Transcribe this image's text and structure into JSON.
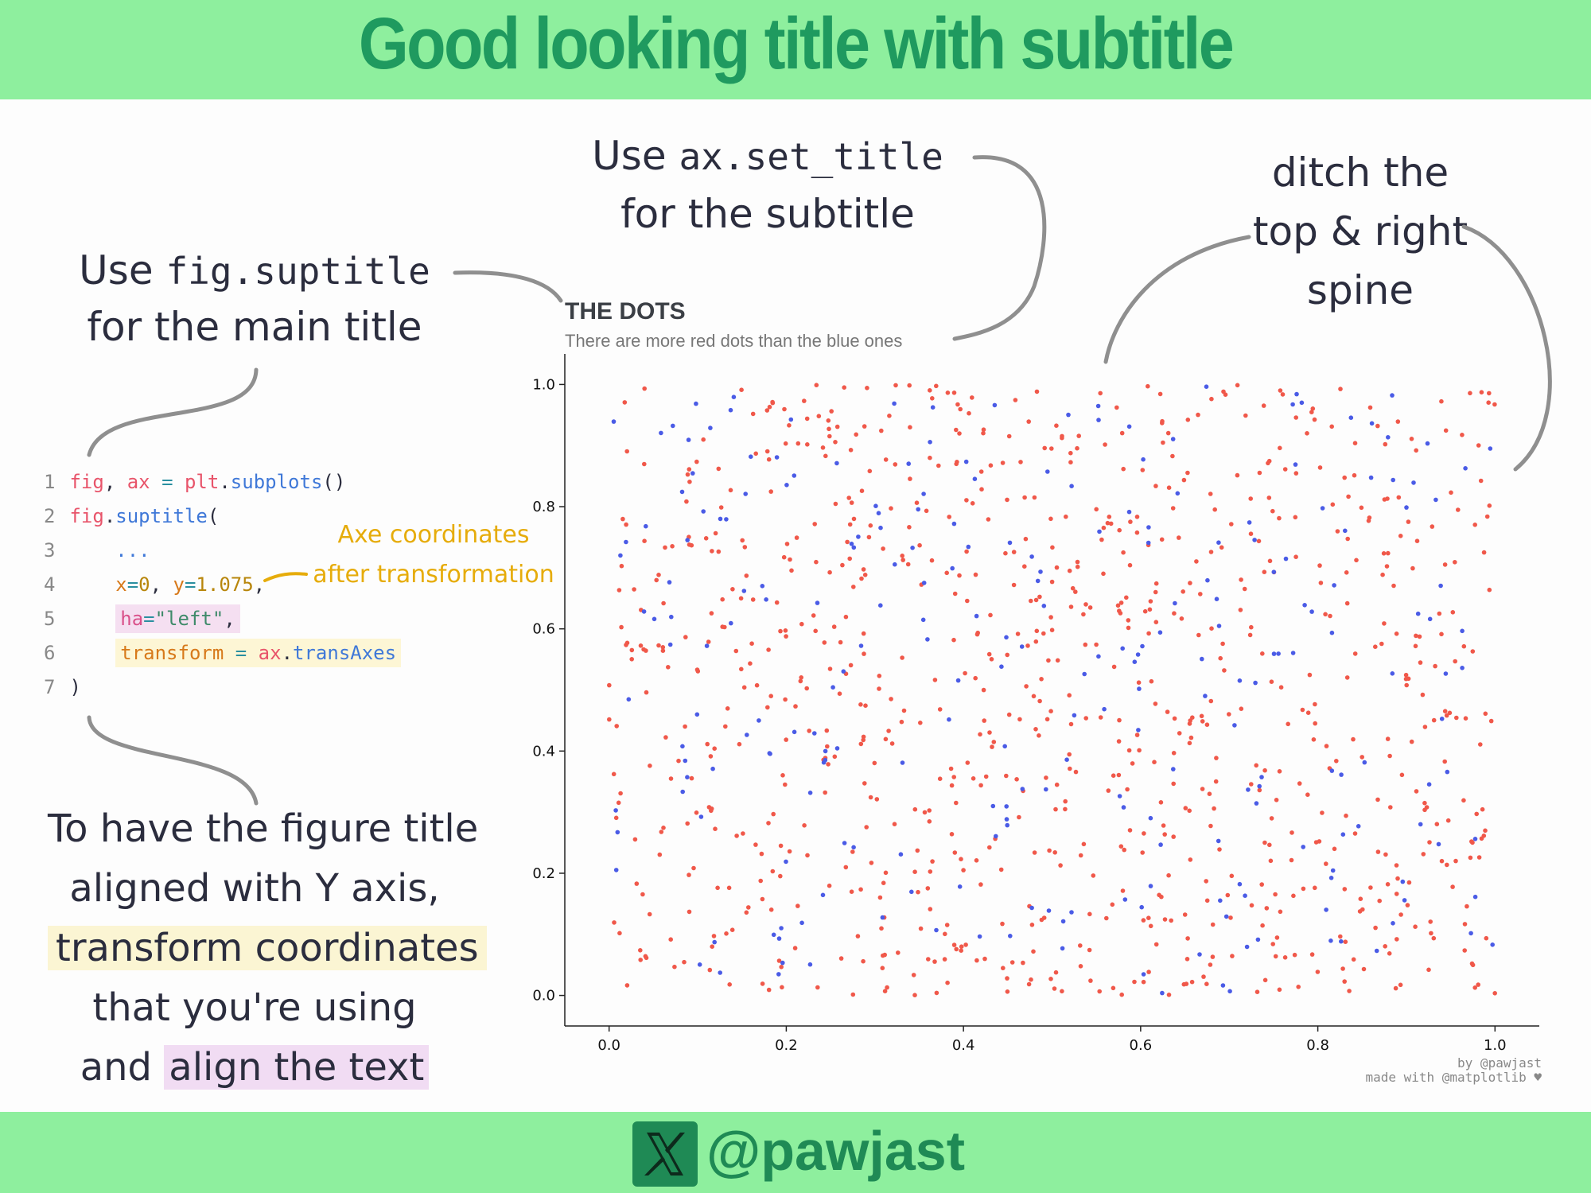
{
  "header": {
    "title": "Good looking title with subtitle"
  },
  "footer": {
    "handle": "@pawjast"
  },
  "notes": {
    "suptitle_a": "Use ",
    "suptitle_code": "fig.suptitle",
    "suptitle_b": "for the main title",
    "settitle_a": "Use ",
    "settitle_code": "ax.set_title",
    "settitle_b": "for the subtitle",
    "spine_1": "ditch the",
    "spine_2": "top & right",
    "spine_3": "spine",
    "align_1": "To have the figure title",
    "align_2": "aligned with Y axis,",
    "align_3": "transform coordinates",
    "align_4": "that you're using",
    "align_5a": "and ",
    "align_5b": "align the text",
    "axe_1": "Axe coordinates",
    "axe_2": "after transformation"
  },
  "code": {
    "l1": [
      "1",
      "fig",
      ", ",
      "ax",
      " = ",
      "plt",
      ".",
      "subplots",
      "()"
    ],
    "l2": [
      "2",
      "fig",
      ".",
      "suptitle",
      "("
    ],
    "l3": [
      "3",
      "    ..."
    ],
    "l4": [
      "4",
      "    ",
      "x",
      "=",
      "0",
      ", ",
      "y",
      "=",
      "1.075",
      ","
    ],
    "l5": [
      "5",
      "    ",
      "ha",
      "=",
      "\"left\"",
      ","
    ],
    "l6": [
      "6",
      "    ",
      "transform",
      " = ",
      "ax",
      ".",
      "transAxes"
    ],
    "l7": [
      "7",
      " )"
    ]
  },
  "credit": {
    "line1": "by @pawjast",
    "line2": "made with @matplotlib ♥"
  },
  "colors": {
    "red": "#f0584a",
    "blue": "#4a5be6",
    "accent_green": "#1f9a5f",
    "header_bg": "#8eef9e"
  },
  "chart_data": {
    "type": "scatter",
    "title": "THE DOTS",
    "subtitle": "There are more red dots than the blue ones",
    "xlim": [
      -0.05,
      1.05
    ],
    "ylim": [
      -0.05,
      1.05
    ],
    "xticks": [
      "0.0",
      "0.2",
      "0.4",
      "0.6",
      "0.8",
      "1.0"
    ],
    "yticks": [
      "0.0",
      "0.2",
      "0.4",
      "0.6",
      "0.8",
      "1.0"
    ],
    "spines": "left and bottom only",
    "series": [
      {
        "color": "#f0584a",
        "count": 900,
        "distribution": "uniform random in [0,1]x[0,1]"
      },
      {
        "color": "#4a5be6",
        "count": 250,
        "distribution": "uniform random in [0,1]x[0,1]"
      }
    ]
  }
}
